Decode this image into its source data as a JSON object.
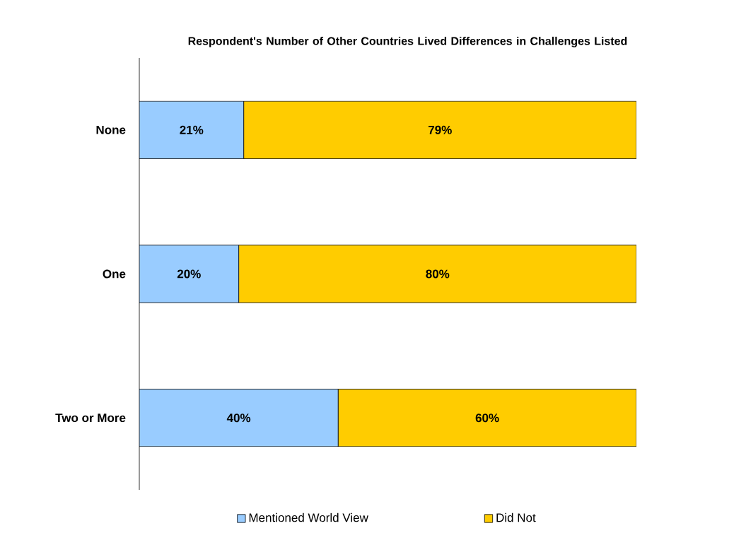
{
  "chart_data": {
    "type": "bar",
    "orientation": "horizontal",
    "stacked": true,
    "title": "Respondent's Number of Other Countries Lived Differences in Challenges Listed",
    "categories": [
      "None",
      "One",
      "Two or More"
    ],
    "tick_labels": "y",
    "legend": "bottom",
    "series": [
      {
        "name": "Mentioned World View",
        "color": "#99ccff",
        "values": [
          21,
          20,
          40
        ],
        "value_labels": [
          "21%",
          "20%",
          "40%"
        ]
      },
      {
        "name": "Did Not",
        "color": "#ffcc00",
        "values": [
          79,
          80,
          60
        ],
        "value_labels": [
          "79%",
          "80%",
          "60%"
        ]
      }
    ]
  }
}
